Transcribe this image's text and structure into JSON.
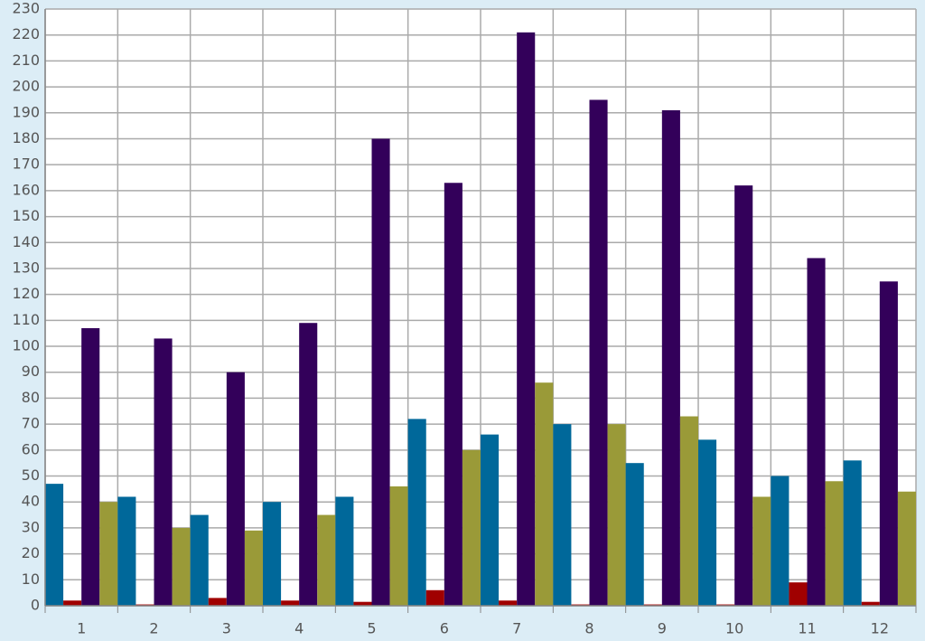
{
  "chart_data": {
    "type": "bar",
    "categories": [
      "1",
      "2",
      "3",
      "4",
      "5",
      "6",
      "7",
      "8",
      "9",
      "10",
      "11",
      "12"
    ],
    "series": [
      {
        "color": "#00689a",
        "values": [
          47,
          42,
          35,
          40,
          42,
          72,
          66,
          70,
          55,
          64,
          50,
          56
        ]
      },
      {
        "color": "#a00000",
        "values": [
          2,
          0.5,
          3,
          2,
          1.5,
          6,
          2,
          0.5,
          0.5,
          0.5,
          9,
          1.5
        ]
      },
      {
        "color": "#33005a",
        "values": [
          107,
          103,
          90,
          109,
          180,
          163,
          221,
          195,
          191,
          162,
          134,
          125
        ]
      },
      {
        "color": "#9a9a38",
        "values": [
          40,
          30,
          29,
          35,
          46,
          60,
          86,
          70,
          73,
          42,
          48,
          44
        ]
      }
    ],
    "ylim": [
      0,
      230
    ],
    "yticks": [
      0,
      10,
      20,
      30,
      40,
      50,
      60,
      70,
      80,
      90,
      100,
      110,
      120,
      130,
      140,
      150,
      160,
      170,
      180,
      190,
      200,
      210,
      220,
      230
    ],
    "grid": true
  }
}
